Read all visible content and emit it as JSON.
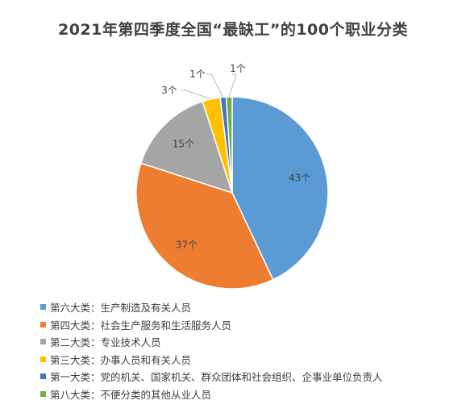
{
  "chart_data": {
    "type": "pie",
    "title": "2021年第四季度全国“最缺工”的100个职业分类",
    "unit": "个",
    "slices": [
      {
        "name": "第六大类：生产制造及有关人员",
        "value": 43,
        "label": "43个",
        "color": "#5B9BD5"
      },
      {
        "name": "第四大类：社会生产服务和生活服务人员",
        "value": 37,
        "label": "37个",
        "color": "#ED7D31"
      },
      {
        "name": "第二大类：专业技术人员",
        "value": 15,
        "label": "15个",
        "color": "#A5A5A5"
      },
      {
        "name": "第三大类：办事人员和有关人员",
        "value": 3,
        "label": "3个",
        "color": "#FFC000"
      },
      {
        "name": "第一大类：党的机关、国家机关、群众团体和社会组织、企事业单位负责人",
        "value": 1,
        "label": "1个",
        "color": "#4472C4"
      },
      {
        "name": "第八大类：不便分类的其他从业人员",
        "value": 1,
        "label": "1个",
        "color": "#70AD47"
      }
    ],
    "legend_position": "bottom-left"
  }
}
